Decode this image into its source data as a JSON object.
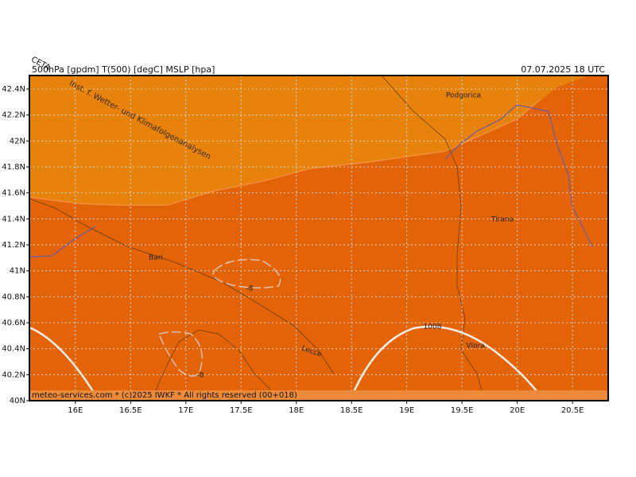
{
  "header": {
    "left": "500hPa [gpdm] T(500) [degC] MSLP [hpa]",
    "right": "07.07.2025 18 UTC",
    "corner": "CETA"
  },
  "watermark": "Inst. f. Wetter- und Klimafolgenanalysen",
  "map": {
    "xlim": [
      15.584,
      20.823
    ],
    "ylim": [
      40,
      42.504
    ],
    "xticks": [
      {
        "value": 16,
        "label": "16E"
      },
      {
        "value": 16.5,
        "label": "16.5E"
      },
      {
        "value": 17,
        "label": "17E"
      },
      {
        "value": 17.5,
        "label": "17.5E"
      },
      {
        "value": 18,
        "label": "18E"
      },
      {
        "value": 18.5,
        "label": "18.5E"
      },
      {
        "value": 19,
        "label": "19E"
      },
      {
        "value": 19.5,
        "label": "19.5E"
      },
      {
        "value": 20,
        "label": "20E"
      },
      {
        "value": 20.5,
        "label": "20.5E"
      }
    ],
    "yticks": [
      {
        "value": 40,
        "label": "40N"
      },
      {
        "value": 40.2,
        "label": "40.2N"
      },
      {
        "value": 40.4,
        "label": "40.4N"
      },
      {
        "value": 40.6,
        "label": "40.6N"
      },
      {
        "value": 40.8,
        "label": "40.8N"
      },
      {
        "value": 41,
        "label": "41N"
      },
      {
        "value": 41.2,
        "label": "41.2N"
      },
      {
        "value": 41.4,
        "label": "41.4N"
      },
      {
        "value": 41.6,
        "label": "41.6N"
      },
      {
        "value": 41.8,
        "label": "41.8N"
      },
      {
        "value": 42,
        "label": "42N"
      },
      {
        "value": 42.2,
        "label": "42.2N"
      },
      {
        "value": 42.4,
        "label": "42.4N"
      }
    ],
    "grid": true
  },
  "places": [
    "Podgorica",
    "Tirana",
    "Bari",
    "Lecce",
    "Vlora"
  ],
  "contour_labels": [
    "1008",
    "-8",
    "-8"
  ],
  "footer": "meteo-services.com * (c)2025 IWKF * All rights reserved (00+018)"
}
